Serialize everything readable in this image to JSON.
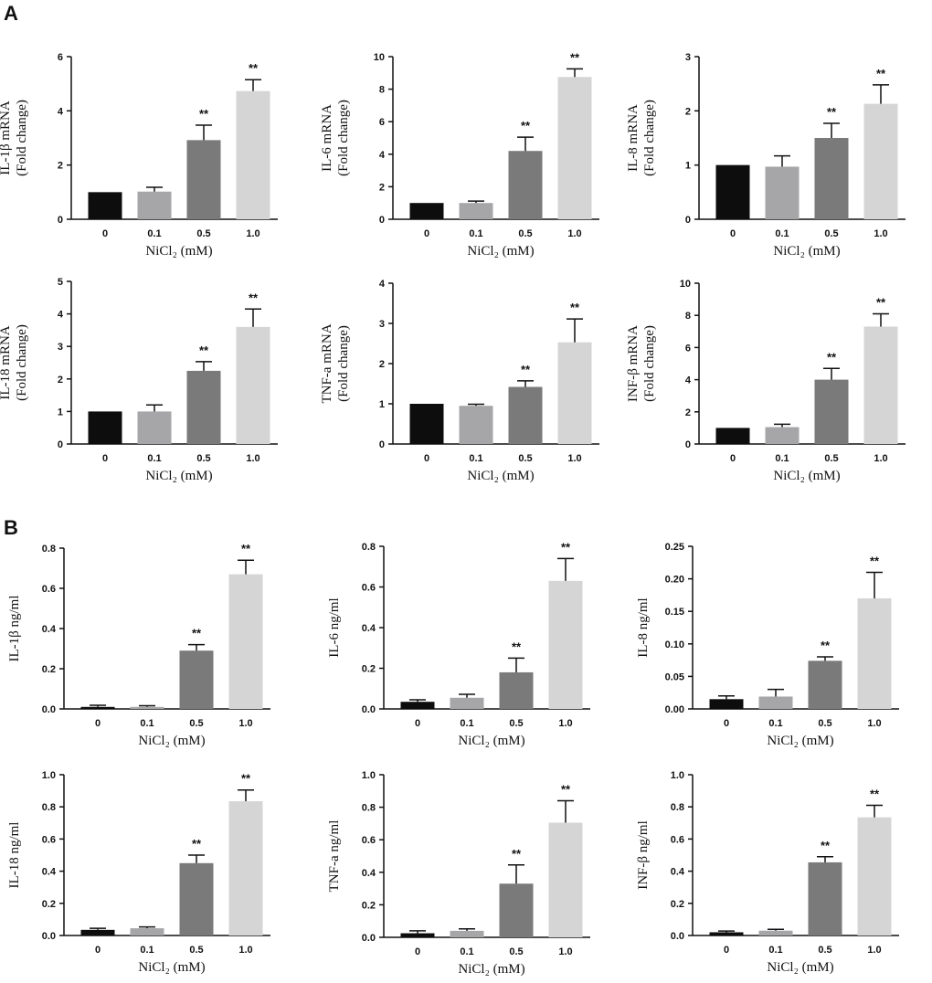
{
  "panels": {
    "a": "A",
    "b": "B"
  },
  "colors": {
    "bars": [
      "#0d0d0d",
      "#a6a6a8",
      "#7a7a7a",
      "#d5d5d5"
    ],
    "axis": "#111111"
  },
  "chart_data": [
    {
      "type": "bar",
      "panel": "A",
      "ylabel_lines": [
        "IL-1β mRNA",
        "(Fold change)"
      ],
      "xlabel": "NiCl₂ (mM)",
      "categories": [
        "0",
        "0.1",
        "0.5",
        "1.0"
      ],
      "values": [
        1.0,
        1.02,
        2.92,
        4.73
      ],
      "errors": [
        0,
        0.16,
        0.55,
        0.42
      ],
      "annotations": [
        "",
        "",
        "**",
        "**"
      ],
      "ylim": [
        0,
        6
      ],
      "yticks": [
        "0",
        "2",
        "4",
        "6"
      ]
    },
    {
      "type": "bar",
      "panel": "A",
      "ylabel_lines": [
        "IL-6 mRNA",
        "(Fold change)"
      ],
      "xlabel": "NiCl₂ (mM)",
      "categories": [
        "0",
        "0.1",
        "0.5",
        "1.0"
      ],
      "values": [
        1.0,
        1.0,
        4.2,
        8.75
      ],
      "errors": [
        0,
        0.12,
        0.85,
        0.5
      ],
      "annotations": [
        "",
        "",
        "**",
        "**"
      ],
      "ylim": [
        0,
        10
      ],
      "yticks": [
        "0",
        "2",
        "4",
        "6",
        "8",
        "10"
      ]
    },
    {
      "type": "bar",
      "panel": "A",
      "ylabel_lines": [
        "IL-8 mRNA",
        "(Fold change)"
      ],
      "xlabel": "NiCl₂ (mM)",
      "categories": [
        "0",
        "0.1",
        "0.5",
        "1.0"
      ],
      "values": [
        1.0,
        0.97,
        1.5,
        2.13
      ],
      "errors": [
        0,
        0.2,
        0.27,
        0.35
      ],
      "annotations": [
        "",
        "",
        "**",
        "**"
      ],
      "ylim": [
        0,
        3
      ],
      "yticks": [
        "0",
        "1",
        "2",
        "3"
      ]
    },
    {
      "type": "bar",
      "panel": "A",
      "ylabel_lines": [
        "IL-18 mRNA",
        "(Fold change)"
      ],
      "xlabel": "NiCl₂ (mM)",
      "categories": [
        "0",
        "0.1",
        "0.5",
        "1.0"
      ],
      "values": [
        1.0,
        1.0,
        2.25,
        3.6
      ],
      "errors": [
        0,
        0.2,
        0.28,
        0.55
      ],
      "annotations": [
        "",
        "",
        "**",
        "**"
      ],
      "ylim": [
        0,
        5
      ],
      "yticks": [
        "0",
        "1",
        "2",
        "3",
        "4",
        "5"
      ]
    },
    {
      "type": "bar",
      "panel": "A",
      "ylabel_lines": [
        "TNF-a mRNA",
        "(Fold change)"
      ],
      "xlabel": "NiCl₂ (mM)",
      "categories": [
        "0",
        "0.1",
        "0.5",
        "1.0"
      ],
      "values": [
        1.0,
        0.95,
        1.42,
        2.53
      ],
      "errors": [
        0,
        0.04,
        0.15,
        0.58
      ],
      "annotations": [
        "",
        "",
        "**",
        "**"
      ],
      "ylim": [
        0,
        4
      ],
      "yticks": [
        "0",
        "1",
        "2",
        "3",
        "4"
      ]
    },
    {
      "type": "bar",
      "panel": "A",
      "ylabel_lines": [
        "INF-β mRNA",
        "(Fold change)"
      ],
      "xlabel": "NiCl₂ (mM)",
      "categories": [
        "0",
        "0.1",
        "0.5",
        "1.0"
      ],
      "values": [
        1.0,
        1.05,
        4.0,
        7.3
      ],
      "errors": [
        0,
        0.18,
        0.7,
        0.8
      ],
      "annotations": [
        "",
        "",
        "**",
        "**"
      ],
      "ylim": [
        0,
        10
      ],
      "yticks": [
        "0",
        "2",
        "4",
        "6",
        "8",
        "10"
      ]
    },
    {
      "type": "bar",
      "panel": "B",
      "ylabel_lines": [
        "IL-1β ng/ml"
      ],
      "xlabel": "NiCl₂ (mM)",
      "categories": [
        "0",
        "0.1",
        "0.5",
        "1.0"
      ],
      "values": [
        0.01,
        0.01,
        0.29,
        0.67
      ],
      "errors": [
        0.008,
        0.006,
        0.03,
        0.07
      ],
      "annotations": [
        "",
        "",
        "**",
        "**"
      ],
      "ylim": [
        0,
        0.8
      ],
      "yticks": [
        "0.0",
        "0.2",
        "0.4",
        "0.6",
        "0.8"
      ]
    },
    {
      "type": "bar",
      "panel": "B",
      "ylabel_lines": [
        "IL-6 ng/ml"
      ],
      "xlabel": "NiCl₂ (mM)",
      "categories": [
        "0",
        "0.1",
        "0.5",
        "1.0"
      ],
      "values": [
        0.035,
        0.055,
        0.18,
        0.63
      ],
      "errors": [
        0.01,
        0.017,
        0.07,
        0.11
      ],
      "annotations": [
        "",
        "",
        "**",
        "**"
      ],
      "ylim": [
        0,
        0.8
      ],
      "yticks": [
        "0.0",
        "0.2",
        "0.4",
        "0.6",
        "0.8"
      ]
    },
    {
      "type": "bar",
      "panel": "B",
      "ylabel_lines": [
        "IL-8 ng/ml"
      ],
      "xlabel": "NiCl₂ (mM)",
      "categories": [
        "0",
        "0.1",
        "0.5",
        "1.0"
      ],
      "values": [
        0.015,
        0.019,
        0.074,
        0.17
      ],
      "errors": [
        0.005,
        0.011,
        0.006,
        0.04
      ],
      "annotations": [
        "",
        "",
        "**",
        "**"
      ],
      "ylim": [
        0,
        0.25
      ],
      "yticks": [
        "0.00",
        "0.05",
        "0.10",
        "0.15",
        "0.20",
        "0.25"
      ]
    },
    {
      "type": "bar",
      "panel": "B",
      "ylabel_lines": [
        "IL-18 ng/ml"
      ],
      "xlabel": "NiCl₂ (mM)",
      "categories": [
        "0",
        "0.1",
        "0.5",
        "1.0"
      ],
      "values": [
        0.035,
        0.045,
        0.45,
        0.835
      ],
      "errors": [
        0.01,
        0.008,
        0.05,
        0.07
      ],
      "annotations": [
        "",
        "",
        "**",
        "**"
      ],
      "ylim": [
        0,
        1.0
      ],
      "yticks": [
        "0.0",
        "0.2",
        "0.4",
        "0.6",
        "0.8",
        "1.0"
      ]
    },
    {
      "type": "bar",
      "panel": "B",
      "ylabel_lines": [
        "TNF-a ng/ml"
      ],
      "xlabel": "NiCl₂ (mM)",
      "categories": [
        "0",
        "0.1",
        "0.5",
        "1.0"
      ],
      "values": [
        0.025,
        0.04,
        0.33,
        0.705
      ],
      "errors": [
        0.015,
        0.012,
        0.115,
        0.135
      ],
      "annotations": [
        "",
        "",
        "**",
        "**"
      ],
      "ylim": [
        0,
        1.0
      ],
      "yticks": [
        "0.0",
        "0.2",
        "0.4",
        "0.6",
        "0.8",
        "1.0"
      ]
    },
    {
      "type": "bar",
      "panel": "B",
      "ylabel_lines": [
        "INF-β ng/ml"
      ],
      "xlabel": "NiCl₂ (mM)",
      "categories": [
        "0",
        "0.1",
        "0.5",
        "1.0"
      ],
      "values": [
        0.02,
        0.03,
        0.455,
        0.735
      ],
      "errors": [
        0.008,
        0.008,
        0.035,
        0.075
      ],
      "annotations": [
        "",
        "",
        "**",
        "**"
      ],
      "ylim": [
        0,
        1.0
      ],
      "yticks": [
        "0.0",
        "0.2",
        "0.4",
        "0.6",
        "0.8",
        "1.0"
      ]
    }
  ]
}
